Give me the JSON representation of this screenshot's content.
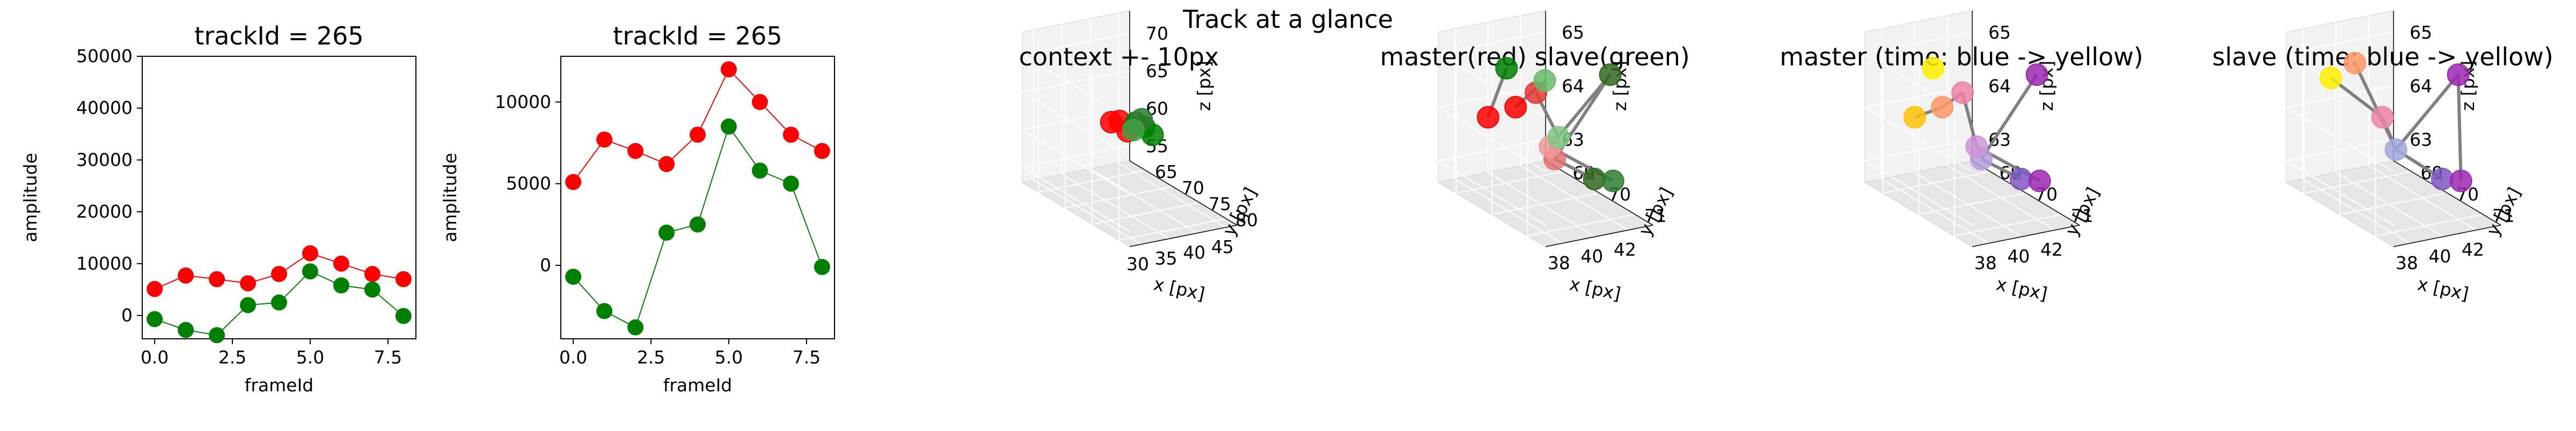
{
  "figure_title": "Track at a glance",
  "colors": {
    "master": "#ff0000",
    "slave": "#008000",
    "link": "#808080",
    "pane": "#f2f2f2",
    "grid": "#e6e6e6"
  },
  "chart_data": [
    {
      "type": "line",
      "title": "trackId = 265",
      "xlabel": "frameId",
      "ylabel": "amplitude",
      "x": [
        0,
        1,
        2,
        3,
        4,
        5,
        6,
        7,
        8
      ],
      "xticks": [
        0.0,
        2.5,
        5.0,
        7.5
      ],
      "xtick_labels": [
        "0.0",
        "2.5",
        "5.0",
        "7.5"
      ],
      "xlim": [
        -0.4,
        8.4
      ],
      "ylim": [
        -4500,
        50000
      ],
      "yticks": [
        0,
        10000,
        20000,
        30000,
        40000,
        50000
      ],
      "ytick_labels": [
        "0",
        "10000",
        "20000",
        "30000",
        "40000",
        "50000"
      ],
      "series": [
        {
          "color": "#ff0000",
          "values": [
            5100,
            7700,
            7000,
            6200,
            8000,
            12000,
            10000,
            8000,
            7000
          ]
        },
        {
          "color": "#008000",
          "values": [
            -700,
            -2800,
            -3800,
            2000,
            2500,
            8500,
            5800,
            5000,
            -100
          ]
        }
      ]
    },
    {
      "type": "line",
      "title": "trackId = 265",
      "xlabel": "frameId",
      "ylabel": "amplitude",
      "x": [
        0,
        1,
        2,
        3,
        4,
        5,
        6,
        7,
        8
      ],
      "xticks": [
        0.0,
        2.5,
        5.0,
        7.5
      ],
      "xtick_labels": [
        "0.0",
        "2.5",
        "5.0",
        "7.5"
      ],
      "xlim": [
        -0.4,
        8.4
      ],
      "ylim": [
        -4500,
        12800
      ],
      "yticks": [
        0,
        5000,
        10000
      ],
      "ytick_labels": [
        "0",
        "5000",
        "10000"
      ],
      "series": [
        {
          "color": "#ff0000",
          "values": [
            5100,
            7700,
            7000,
            6200,
            8000,
            12000,
            10000,
            8000,
            7000
          ]
        },
        {
          "color": "#008000",
          "values": [
            -700,
            -2800,
            -3800,
            2000,
            2500,
            8500,
            5800,
            5000,
            -100
          ]
        }
      ]
    },
    {
      "type": "scatter3d",
      "title": "context +- 10px",
      "xlabel": "x [px]",
      "ylabel": "y [px]",
      "zlabel": "z [px]",
      "xlim": [
        28,
        47
      ],
      "ylim": [
        62,
        82
      ],
      "zlim": [
        53,
        73
      ],
      "xticks": [
        30,
        35,
        40,
        45
      ],
      "yticks": [
        65,
        70,
        75,
        80
      ],
      "zticks": [
        55,
        60,
        65,
        70
      ],
      "points": [
        {
          "x": 39,
          "y": 67,
          "z": 61.5,
          "color": "#ff0000"
        },
        {
          "x": 39.5,
          "y": 68,
          "z": 62,
          "color": "#ff0000"
        },
        {
          "x": 40,
          "y": 69,
          "z": 61,
          "color": "#ff0000"
        },
        {
          "x": 40.5,
          "y": 70,
          "z": 62.5,
          "color": "#008000"
        },
        {
          "x": 41.5,
          "y": 70.5,
          "z": 62,
          "color": "#008000"
        },
        {
          "x": 42.5,
          "y": 71,
          "z": 61,
          "color": "#008000"
        },
        {
          "x": 42,
          "y": 69.5,
          "z": 62.5,
          "color": "#2e7d32"
        },
        {
          "x": 41,
          "y": 69,
          "z": 61,
          "color": "#43a047"
        }
      ],
      "links": [
        [
          0,
          5
        ],
        [
          2,
          6
        ],
        [
          1,
          7
        ]
      ]
    },
    {
      "type": "scatter3d",
      "title": "master(red) slave(green)",
      "xlabel": "x [px]",
      "ylabel": "y [px]",
      "zlabel": "z [px]",
      "xlim": [
        37,
        43.5
      ],
      "ylim": [
        68.5,
        71.5
      ],
      "zlim": [
        62.6,
        65.4
      ],
      "xticks": [
        38,
        40,
        42
      ],
      "yticks": [
        69,
        70,
        71
      ],
      "zticks": [
        63,
        64,
        65
      ],
      "points": [
        {
          "x": 38.5,
          "y": 69.2,
          "z": 64.0,
          "color": "#ff0000"
        },
        {
          "x": 39.3,
          "y": 69.6,
          "z": 64.3,
          "color": "#ff0000"
        },
        {
          "x": 40.1,
          "y": 69.8,
          "z": 64.6,
          "color": "#e53935"
        },
        {
          "x": 40.8,
          "y": 70.0,
          "z": 63.4,
          "color": "#e57373"
        },
        {
          "x": 40.3,
          "y": 70.1,
          "z": 63.7,
          "color": "#ef9a9a"
        },
        {
          "x": 39.4,
          "y": 69.3,
          "z": 64.9,
          "color": "#008000"
        },
        {
          "x": 40.2,
          "y": 70.0,
          "z": 64.9,
          "color": "#66bb6a"
        },
        {
          "x": 40.6,
          "y": 70.2,
          "z": 63.9,
          "color": "#81c784"
        },
        {
          "x": 41.9,
          "y": 70.6,
          "z": 63.2,
          "color": "#33691e"
        },
        {
          "x": 42.6,
          "y": 70.8,
          "z": 63.2,
          "color": "#2e7d32"
        },
        {
          "x": 42.0,
          "y": 71.0,
          "z": 65.3,
          "color": "#33691e"
        }
      ],
      "links": [
        [
          0,
          5
        ],
        [
          1,
          6
        ],
        [
          2,
          7
        ],
        [
          3,
          10
        ],
        [
          4,
          9
        ],
        [
          3,
          8
        ],
        [
          4,
          10
        ]
      ]
    },
    {
      "type": "scatter3d",
      "title": "master (time: blue -> yellow)",
      "xlabel": "x [px]",
      "ylabel": "y [px]",
      "zlabel": "z [px]",
      "xlim": [
        37,
        43.5
      ],
      "ylim": [
        68.5,
        71.5
      ],
      "zlim": [
        62.6,
        65.4
      ],
      "xticks": [
        38,
        40,
        42
      ],
      "yticks": [
        69,
        70,
        71
      ],
      "zticks": [
        63,
        64,
        65
      ],
      "points": [
        {
          "x": 38.5,
          "y": 69.2,
          "z": 64.0,
          "color": "#ffc107"
        },
        {
          "x": 39.3,
          "y": 69.6,
          "z": 64.3,
          "color": "#ff9966"
        },
        {
          "x": 40.1,
          "y": 69.8,
          "z": 64.6,
          "color": "#ee82aa"
        },
        {
          "x": 40.8,
          "y": 70.0,
          "z": 63.4,
          "color": "#b39ddb"
        },
        {
          "x": 40.3,
          "y": 70.1,
          "z": 63.7,
          "color": "#ce93d8"
        },
        {
          "x": 39.4,
          "y": 69.3,
          "z": 64.9,
          "color": "#ffee00"
        },
        {
          "x": 41.9,
          "y": 70.6,
          "z": 63.2,
          "color": "#7e57c2"
        },
        {
          "x": 42.6,
          "y": 70.8,
          "z": 63.2,
          "color": "#9c27b0"
        },
        {
          "x": 42.0,
          "y": 71.0,
          "z": 65.3,
          "color": "#9c27b0"
        }
      ],
      "links": [
        [
          0,
          1
        ],
        [
          1,
          2
        ],
        [
          3,
          8
        ],
        [
          4,
          7
        ],
        [
          3,
          6
        ],
        [
          2,
          4
        ]
      ]
    },
    {
      "type": "scatter3d",
      "title": "slave (time: blue -> yellow)",
      "xlabel": "x [px]",
      "ylabel": "y [px]",
      "zlabel": "z [px]",
      "xlim": [
        37,
        43.5
      ],
      "ylim": [
        68.5,
        71.5
      ],
      "zlim": [
        62.6,
        65.4
      ],
      "xticks": [
        38,
        40,
        42
      ],
      "yticks": [
        69,
        70,
        71
      ],
      "zticks": [
        63,
        64,
        65
      ],
      "points": [
        {
          "x": 38.4,
          "y": 69.1,
          "z": 64.7,
          "color": "#ffee00"
        },
        {
          "x": 39.0,
          "y": 69.5,
          "z": 65.1,
          "color": "#ff9966"
        },
        {
          "x": 39.8,
          "y": 69.9,
          "z": 64.2,
          "color": "#ee82aa"
        },
        {
          "x": 40.4,
          "y": 70.0,
          "z": 63.6,
          "color": "#9fa8da"
        },
        {
          "x": 41.9,
          "y": 70.6,
          "z": 63.2,
          "color": "#7e57c2"
        },
        {
          "x": 42.6,
          "y": 70.8,
          "z": 63.2,
          "color": "#9c27b0"
        },
        {
          "x": 42.0,
          "y": 71.0,
          "z": 65.3,
          "color": "#9c27b0"
        }
      ],
      "links": [
        [
          0,
          2
        ],
        [
          1,
          3
        ],
        [
          2,
          3
        ],
        [
          3,
          6
        ],
        [
          6,
          5
        ],
        [
          3,
          4
        ]
      ]
    }
  ]
}
